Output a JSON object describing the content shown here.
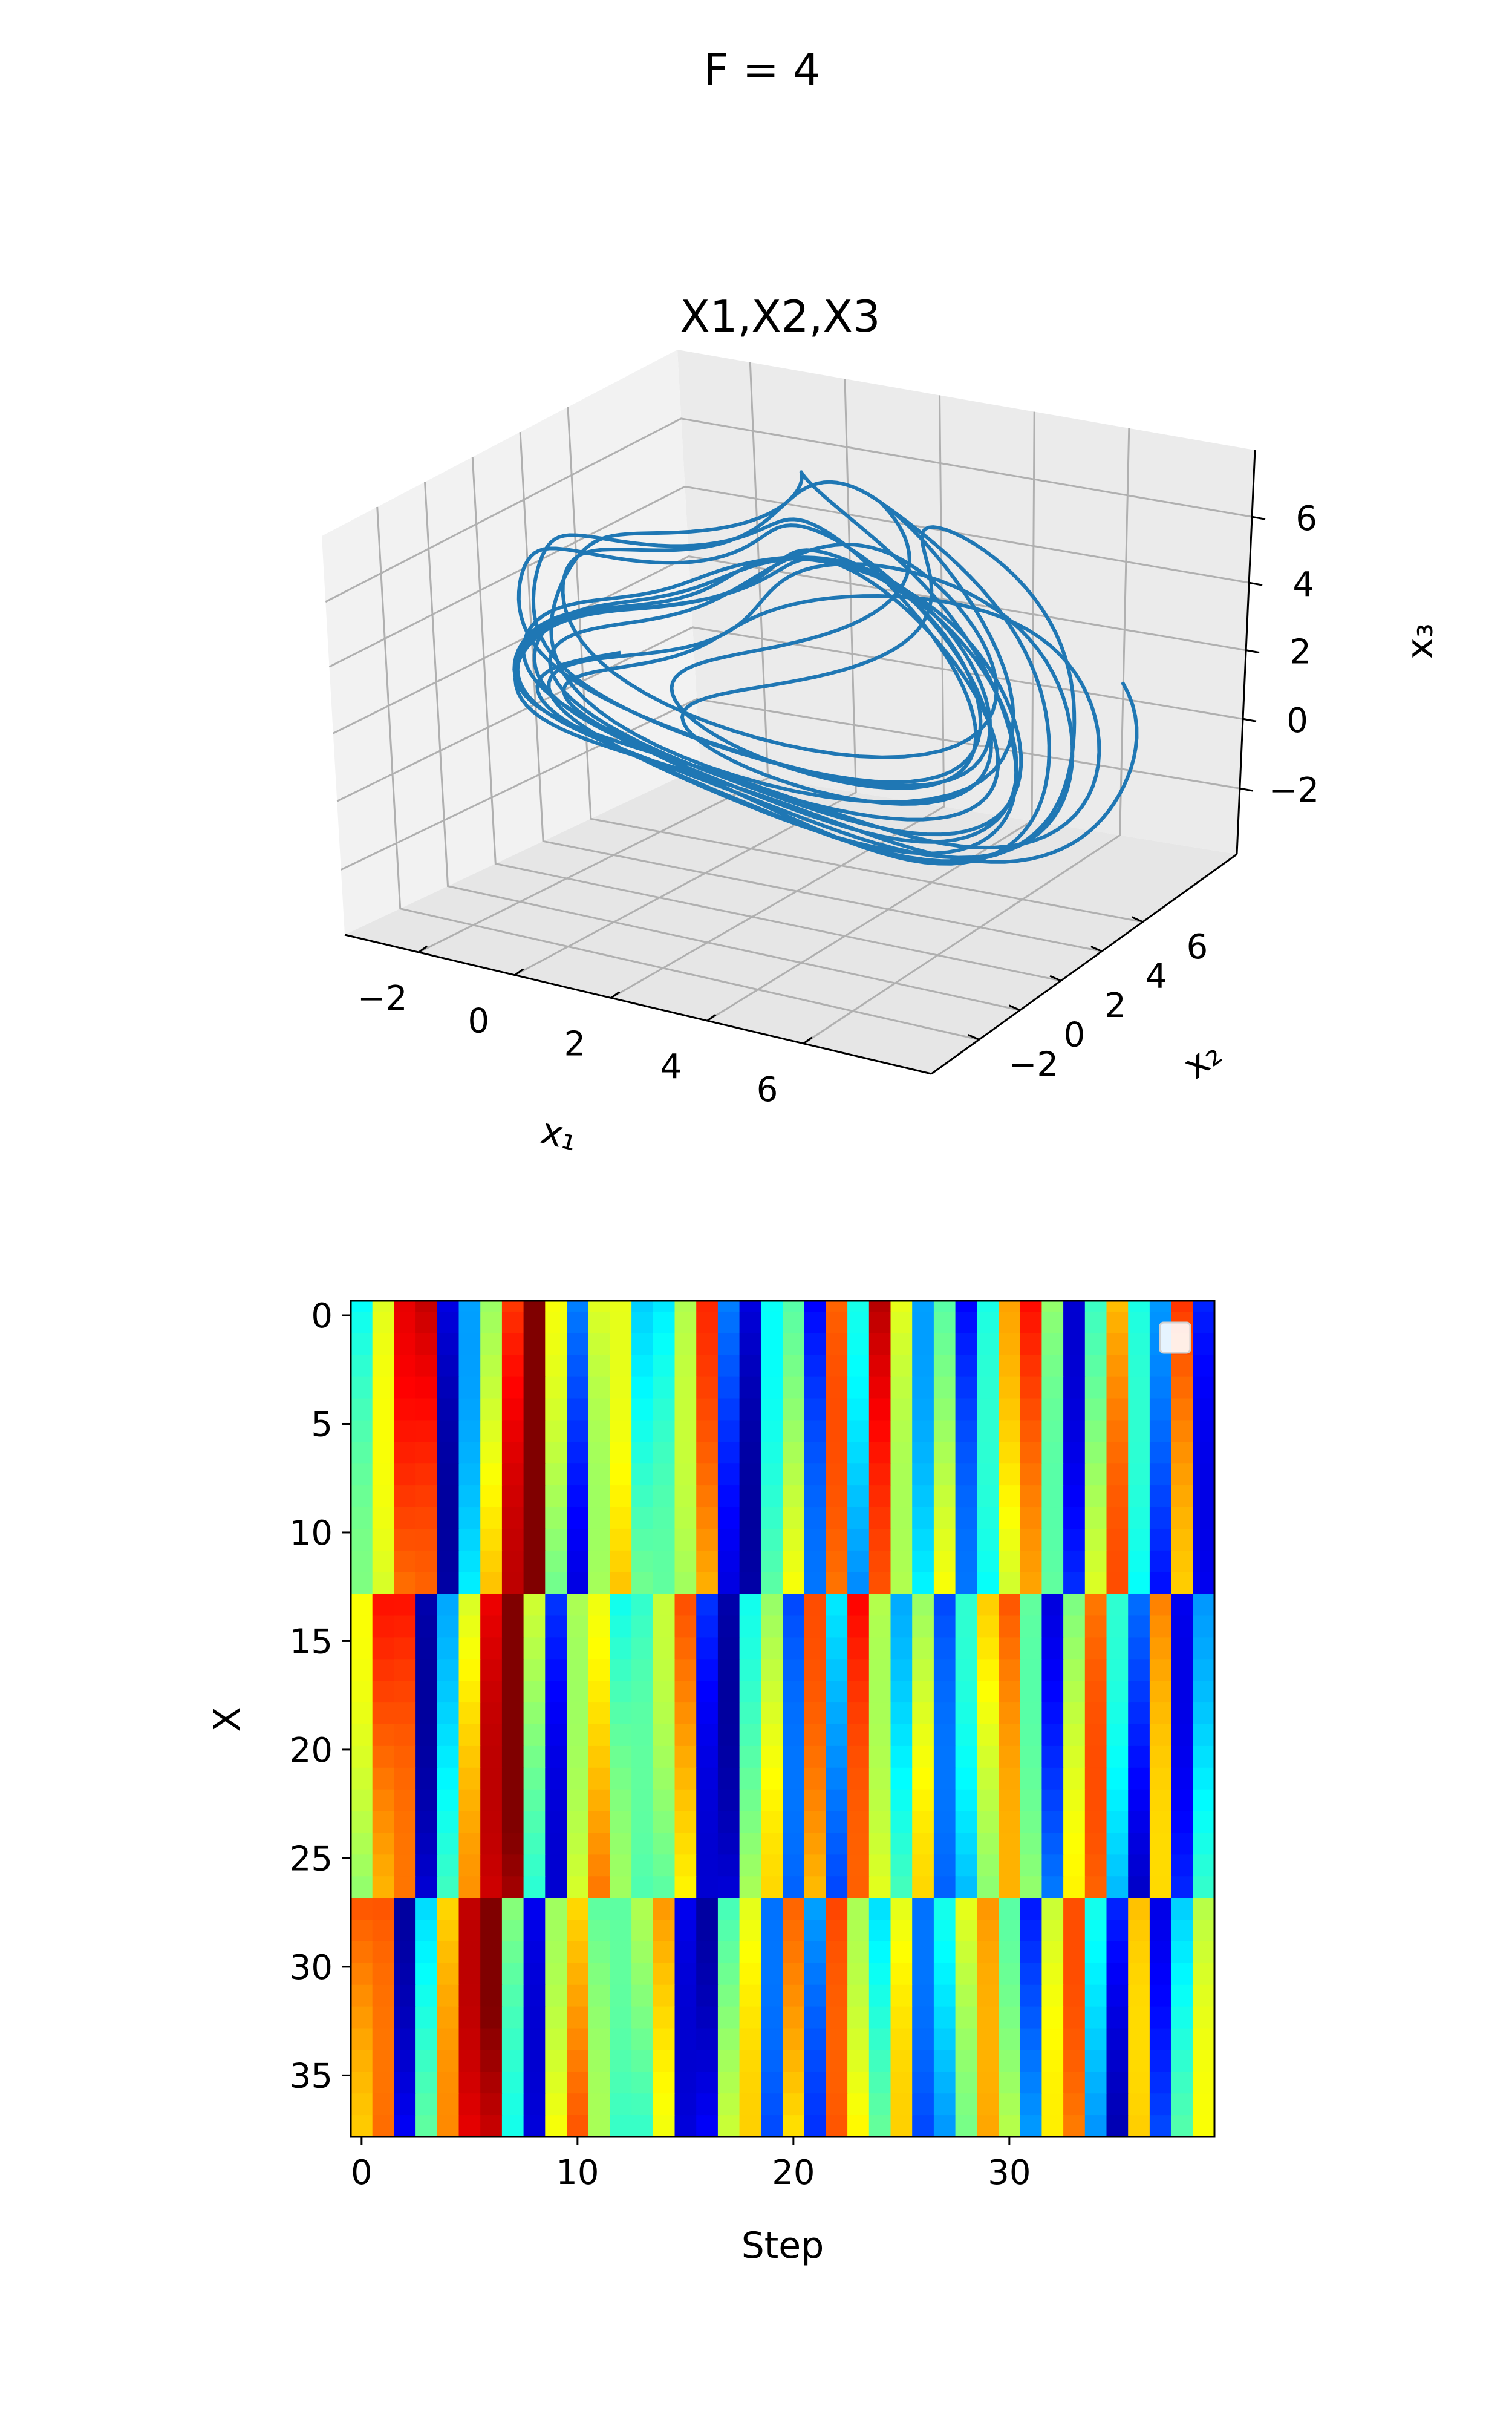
{
  "suptitle": "F = 4",
  "chart_data": [
    {
      "type": "line3d",
      "title": "X1,X2,X3",
      "xlabel": "x₁",
      "ylabel": "x₂",
      "zlabel": "x₃",
      "xlim": [
        -3,
        6.5
      ],
      "ylim": [
        -3,
        7.5
      ],
      "zlim": [
        -3.5,
        6.5
      ],
      "x_ticks": [
        "−2",
        "0",
        "2",
        "4",
        "6"
      ],
      "y_ticks": [
        "−2",
        "0",
        "2",
        "4",
        "6"
      ],
      "z_ticks": [
        "−2",
        "0",
        "2",
        "4",
        "6"
      ],
      "grid": true,
      "series": [
        {
          "color": "#1f77b4",
          "description": "Lorenz-96 trajectory, first three state variables (x1, x2, x3)"
        }
      ]
    },
    {
      "type": "heatmap",
      "xlabel": "Step",
      "ylabel": "X",
      "colormap": "jet",
      "n_cols": 40,
      "n_rows": 40,
      "x_ticks": [
        "0",
        "10",
        "20",
        "30"
      ],
      "y_ticks": [
        "0",
        "5",
        "10",
        "15",
        "20",
        "25",
        "30",
        "35"
      ],
      "legend": "top-right (empty)"
    }
  ]
}
